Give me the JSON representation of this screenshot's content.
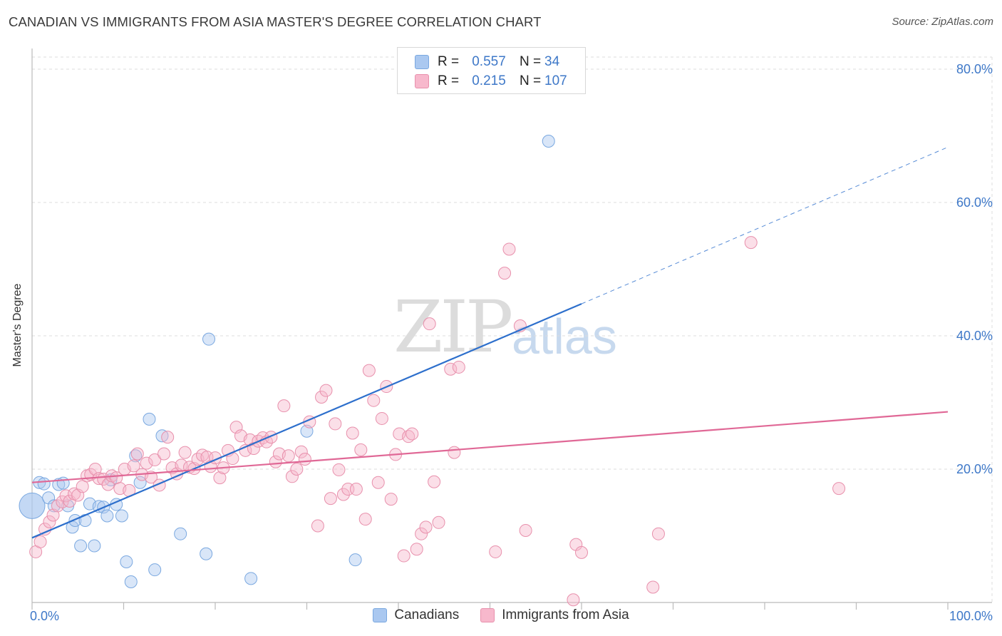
{
  "header": {
    "title": "CANADIAN VS IMMIGRANTS FROM ASIA MASTER'S DEGREE CORRELATION CHART",
    "source": "Source: ZipAtlas.com"
  },
  "watermark": {
    "zip": "ZIP",
    "atlas": "atlas"
  },
  "legend": {
    "r_label": "R =",
    "n_label": "N =",
    "rows": [
      {
        "r": "0.557",
        "n": "34",
        "color": "#aac8f0",
        "border": "#7aa8e0"
      },
      {
        "r": "0.215",
        "n": "107",
        "color": "#f7b8cc",
        "border": "#e890ac"
      }
    ]
  },
  "bottom_legend": [
    {
      "label": "Canadians",
      "color": "#aac8f0",
      "border": "#7aa8e0"
    },
    {
      "label": "Immigrants from Asia",
      "color": "#f7b8cc",
      "border": "#e890ac"
    }
  ],
  "colors": {
    "blue_line": "#2d6fcc",
    "pink_line": "#e06896",
    "tick_label": "#3e78c8",
    "grid": "#dddddd"
  },
  "chart_data": {
    "type": "scatter",
    "title": "CANADIAN VS IMMIGRANTS FROM ASIA MASTER'S DEGREE CORRELATION CHART",
    "xlabel": "",
    "ylabel": "Master's Degree",
    "xlim": [
      0,
      100
    ],
    "ylim": [
      0,
      80
    ],
    "x_tick_labels": [
      {
        "value": 0,
        "label": "0.0%"
      },
      {
        "value": 100,
        "label": "100.0%"
      }
    ],
    "y_tick_labels": [
      {
        "value": 20,
        "label": "20.0%"
      },
      {
        "value": 40,
        "label": "40.0%"
      },
      {
        "value": 60,
        "label": "60.0%"
      },
      {
        "value": 80,
        "label": "80.0%"
      }
    ],
    "grid": true,
    "legend_position": "top-center",
    "series": [
      {
        "name": "Canadians",
        "color": "#aac8f0",
        "points": [
          [
            0.0,
            14.5
          ],
          [
            0.8,
            18.0
          ],
          [
            1.3,
            17.8
          ],
          [
            1.8,
            15.7
          ],
          [
            2.4,
            14.5
          ],
          [
            2.9,
            17.7
          ],
          [
            3.4,
            17.9
          ],
          [
            3.9,
            14.5
          ],
          [
            4.4,
            11.3
          ],
          [
            4.7,
            12.3
          ],
          [
            5.3,
            8.5
          ],
          [
            5.8,
            12.3
          ],
          [
            6.3,
            14.8
          ],
          [
            6.8,
            8.5
          ],
          [
            7.3,
            14.4
          ],
          [
            7.8,
            14.3
          ],
          [
            8.2,
            13.0
          ],
          [
            8.6,
            18.4
          ],
          [
            9.2,
            14.7
          ],
          [
            9.8,
            13.0
          ],
          [
            10.3,
            6.1
          ],
          [
            10.8,
            3.1
          ],
          [
            11.3,
            22.0
          ],
          [
            11.8,
            18.0
          ],
          [
            12.8,
            27.5
          ],
          [
            13.4,
            4.9
          ],
          [
            14.2,
            25.0
          ],
          [
            16.2,
            10.3
          ],
          [
            19.0,
            7.3
          ],
          [
            19.3,
            39.5
          ],
          [
            23.9,
            3.6
          ],
          [
            30.0,
            25.7
          ],
          [
            35.3,
            6.4
          ],
          [
            56.4,
            69.2
          ]
        ]
      },
      {
        "name": "Immigrants from Asia",
        "color": "#f7b8cc",
        "points": [
          [
            0.4,
            7.6
          ],
          [
            0.9,
            9.1
          ],
          [
            1.4,
            11.0
          ],
          [
            1.9,
            12.1
          ],
          [
            2.3,
            13.1
          ],
          [
            2.8,
            14.5
          ],
          [
            3.3,
            15.1
          ],
          [
            3.7,
            16.0
          ],
          [
            4.1,
            15.2
          ],
          [
            4.6,
            16.3
          ],
          [
            5.0,
            16.1
          ],
          [
            5.5,
            17.4
          ],
          [
            6.0,
            19.0
          ],
          [
            6.4,
            19.2
          ],
          [
            6.9,
            20.0
          ],
          [
            7.3,
            18.6
          ],
          [
            7.8,
            18.5
          ],
          [
            8.3,
            17.7
          ],
          [
            8.7,
            19.0
          ],
          [
            9.2,
            18.7
          ],
          [
            9.6,
            17.1
          ],
          [
            10.1,
            20.0
          ],
          [
            10.6,
            16.8
          ],
          [
            11.1,
            20.5
          ],
          [
            11.5,
            22.3
          ],
          [
            12.0,
            19.2
          ],
          [
            12.5,
            20.9
          ],
          [
            13.0,
            18.8
          ],
          [
            13.4,
            21.4
          ],
          [
            13.9,
            17.6
          ],
          [
            14.4,
            22.3
          ],
          [
            14.8,
            24.8
          ],
          [
            15.3,
            20.2
          ],
          [
            15.8,
            19.3
          ],
          [
            16.3,
            20.6
          ],
          [
            16.7,
            22.5
          ],
          [
            17.2,
            20.3
          ],
          [
            17.7,
            20.1
          ],
          [
            18.1,
            21.5
          ],
          [
            18.6,
            22.1
          ],
          [
            19.1,
            21.8
          ],
          [
            19.5,
            20.4
          ],
          [
            20.0,
            21.7
          ],
          [
            20.5,
            18.7
          ],
          [
            20.9,
            20.2
          ],
          [
            21.4,
            22.8
          ],
          [
            21.9,
            21.6
          ],
          [
            22.3,
            26.3
          ],
          [
            22.8,
            25.0
          ],
          [
            23.3,
            22.8
          ],
          [
            23.8,
            24.4
          ],
          [
            24.2,
            23.1
          ],
          [
            24.7,
            24.2
          ],
          [
            25.2,
            24.7
          ],
          [
            25.6,
            24.1
          ],
          [
            26.1,
            24.8
          ],
          [
            26.6,
            21.1
          ],
          [
            27.0,
            22.3
          ],
          [
            27.5,
            29.5
          ],
          [
            28.0,
            22.0
          ],
          [
            28.4,
            18.9
          ],
          [
            28.9,
            20.0
          ],
          [
            29.4,
            22.6
          ],
          [
            29.8,
            21.5
          ],
          [
            30.3,
            27.1
          ],
          [
            31.2,
            11.5
          ],
          [
            31.6,
            30.8
          ],
          [
            32.1,
            31.8
          ],
          [
            32.6,
            15.6
          ],
          [
            33.1,
            26.8
          ],
          [
            33.5,
            19.9
          ],
          [
            34.0,
            16.2
          ],
          [
            34.5,
            17.0
          ],
          [
            35.0,
            25.4
          ],
          [
            35.4,
            17.0
          ],
          [
            35.9,
            22.9
          ],
          [
            36.4,
            12.5
          ],
          [
            36.8,
            34.8
          ],
          [
            37.3,
            30.3
          ],
          [
            37.8,
            18.0
          ],
          [
            38.2,
            27.6
          ],
          [
            38.7,
            32.4
          ],
          [
            39.2,
            15.5
          ],
          [
            39.7,
            22.2
          ],
          [
            40.1,
            25.3
          ],
          [
            40.6,
            7.0
          ],
          [
            41.1,
            24.9
          ],
          [
            41.5,
            25.3
          ],
          [
            42.0,
            8.0
          ],
          [
            42.5,
            10.3
          ],
          [
            43.0,
            11.3
          ],
          [
            43.4,
            41.8
          ],
          [
            43.9,
            18.1
          ],
          [
            44.4,
            12.0
          ],
          [
            45.7,
            35.0
          ],
          [
            46.1,
            22.5
          ],
          [
            46.6,
            35.3
          ],
          [
            50.6,
            7.6
          ],
          [
            51.6,
            49.4
          ],
          [
            52.1,
            53.0
          ],
          [
            53.3,
            41.5
          ],
          [
            53.9,
            10.8
          ],
          [
            59.1,
            0.4
          ],
          [
            59.4,
            8.7
          ],
          [
            60.0,
            7.5
          ],
          [
            67.8,
            2.3
          ],
          [
            68.4,
            10.3
          ],
          [
            78.5,
            54.0
          ],
          [
            88.1,
            17.1
          ]
        ]
      }
    ],
    "trend_lines": [
      {
        "series": "Canadians",
        "x": [
          0,
          60
        ],
        "y": [
          9.7,
          44.8
        ],
        "extended_x": [
          60,
          100
        ],
        "extended_y": [
          44.8,
          68.3
        ],
        "style": "solid then dashed"
      },
      {
        "series": "Immigrants from Asia",
        "x": [
          0,
          100
        ],
        "y": [
          18.0,
          28.6
        ],
        "style": "solid"
      }
    ]
  }
}
